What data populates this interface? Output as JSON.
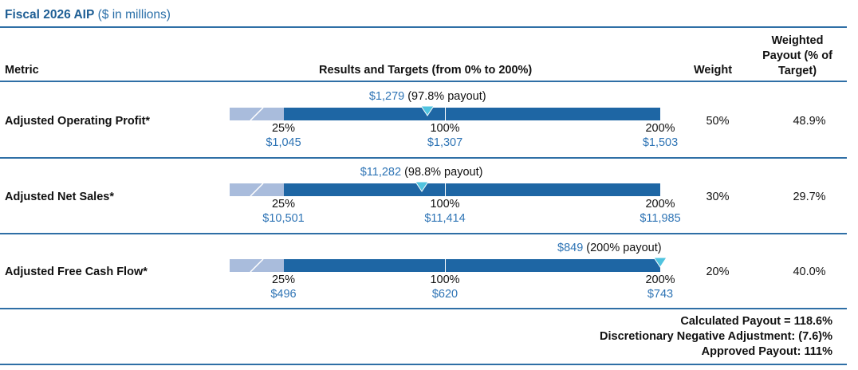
{
  "title": {
    "bold": "Fiscal 2026 AIP",
    "rest": "($ in millions)"
  },
  "headers": {
    "metric": "Metric",
    "results": "Results and Targets (from 0% to 200%)",
    "weight": "Weight",
    "payout_line1": "Weighted",
    "payout_line2": "Payout (% of",
    "payout_line3": "Target)"
  },
  "chart_data": {
    "type": "bar",
    "title": "Fiscal 2026 AIP ($ in millions)",
    "scale_range_percent": [
      0,
      200
    ],
    "rows": [
      {
        "metric": "Adjusted Operating Profit*",
        "ticks": [
          {
            "pct_label": "25%",
            "amount": "$1,045",
            "value": 1045
          },
          {
            "pct_label": "100%",
            "amount": "$1,307",
            "value": 1307
          },
          {
            "pct_label": "200%",
            "amount": "$1,503",
            "value": 1503
          }
        ],
        "result": {
          "amount": "$1,279",
          "note": "(97.8% payout)",
          "value": 1279,
          "payout_pct": 97.8
        },
        "weight": "50%",
        "weighted_payout": "48.9%"
      },
      {
        "metric": "Adjusted Net Sales*",
        "ticks": [
          {
            "pct_label": "25%",
            "amount": "$10,501",
            "value": 10501
          },
          {
            "pct_label": "100%",
            "amount": "$11,414",
            "value": 11414
          },
          {
            "pct_label": "200%",
            "amount": "$11,985",
            "value": 11985
          }
        ],
        "result": {
          "amount": "$11,282",
          "note": "(98.8% payout)",
          "value": 11282,
          "payout_pct": 98.8
        },
        "weight": "30%",
        "weighted_payout": "29.7%"
      },
      {
        "metric": "Adjusted Free Cash Flow*",
        "ticks": [
          {
            "pct_label": "25%",
            "amount": "$496",
            "value": 496
          },
          {
            "pct_label": "100%",
            "amount": "$620",
            "value": 620
          },
          {
            "pct_label": "200%",
            "amount": "$743",
            "value": 743
          }
        ],
        "result": {
          "amount": "$849",
          "note": "(200% payout)",
          "value": 849,
          "payout_pct": 200
        },
        "weight": "20%",
        "weighted_payout": "40.0%"
      }
    ]
  },
  "summary": {
    "calculated": "Calculated Payout = 118.6%",
    "adjustment": "Discretionary Negative Adjustment: (7.6)%",
    "approved": "Approved Payout: 111%"
  },
  "colors": {
    "light_bar": "#a9bcdc",
    "dark_bar": "#1e66a4",
    "marker": "#4fc3df",
    "accent": "#2e74b5",
    "rule": "#2f6fa6"
  }
}
